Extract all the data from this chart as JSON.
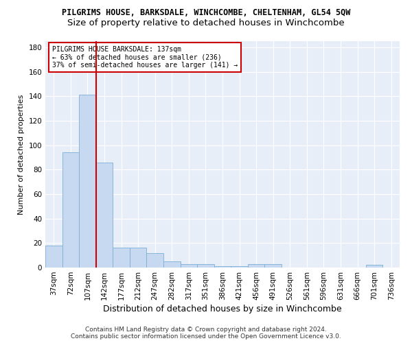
{
  "title": "PILGRIMS HOUSE, BARKSDALE, WINCHCOMBE, CHELTENHAM, GL54 5QW",
  "subtitle": "Size of property relative to detached houses in Winchcombe",
  "xlabel": "Distribution of detached houses by size in Winchcombe",
  "ylabel": "Number of detached properties",
  "footer_line1": "Contains HM Land Registry data © Crown copyright and database right 2024.",
  "footer_line2": "Contains public sector information licensed under the Open Government Licence v3.0.",
  "bins": [
    "37sqm",
    "72sqm",
    "107sqm",
    "142sqm",
    "177sqm",
    "212sqm",
    "247sqm",
    "282sqm",
    "317sqm",
    "351sqm",
    "386sqm",
    "421sqm",
    "456sqm",
    "491sqm",
    "526sqm",
    "561sqm",
    "596sqm",
    "631sqm",
    "666sqm",
    "701sqm",
    "736sqm"
  ],
  "values": [
    18,
    94,
    141,
    86,
    16,
    16,
    12,
    5,
    3,
    3,
    1,
    1,
    3,
    3,
    0,
    0,
    0,
    0,
    0,
    2,
    0
  ],
  "bar_color": "#c6d9f0",
  "bar_edge_color": "#7bafd4",
  "marker_bar_index": 2,
  "marker_color": "#cc0000",
  "annotation_text": "PILGRIMS HOUSE BARKSDALE: 137sqm\n← 63% of detached houses are smaller (236)\n37% of semi-detached houses are larger (141) →",
  "annotation_box_color": "#ffffff",
  "annotation_border_color": "#cc0000",
  "ylim": [
    0,
    185
  ],
  "yticks": [
    0,
    20,
    40,
    60,
    80,
    100,
    120,
    140,
    160,
    180
  ],
  "bg_color": "#e8eef8",
  "grid_color": "#ffffff",
  "fig_bg_color": "#ffffff",
  "title_fontsize": 8.5,
  "subtitle_fontsize": 9.5,
  "axis_label_fontsize": 9,
  "tick_fontsize": 7.5,
  "ylabel_fontsize": 8,
  "footer_fontsize": 6.5
}
